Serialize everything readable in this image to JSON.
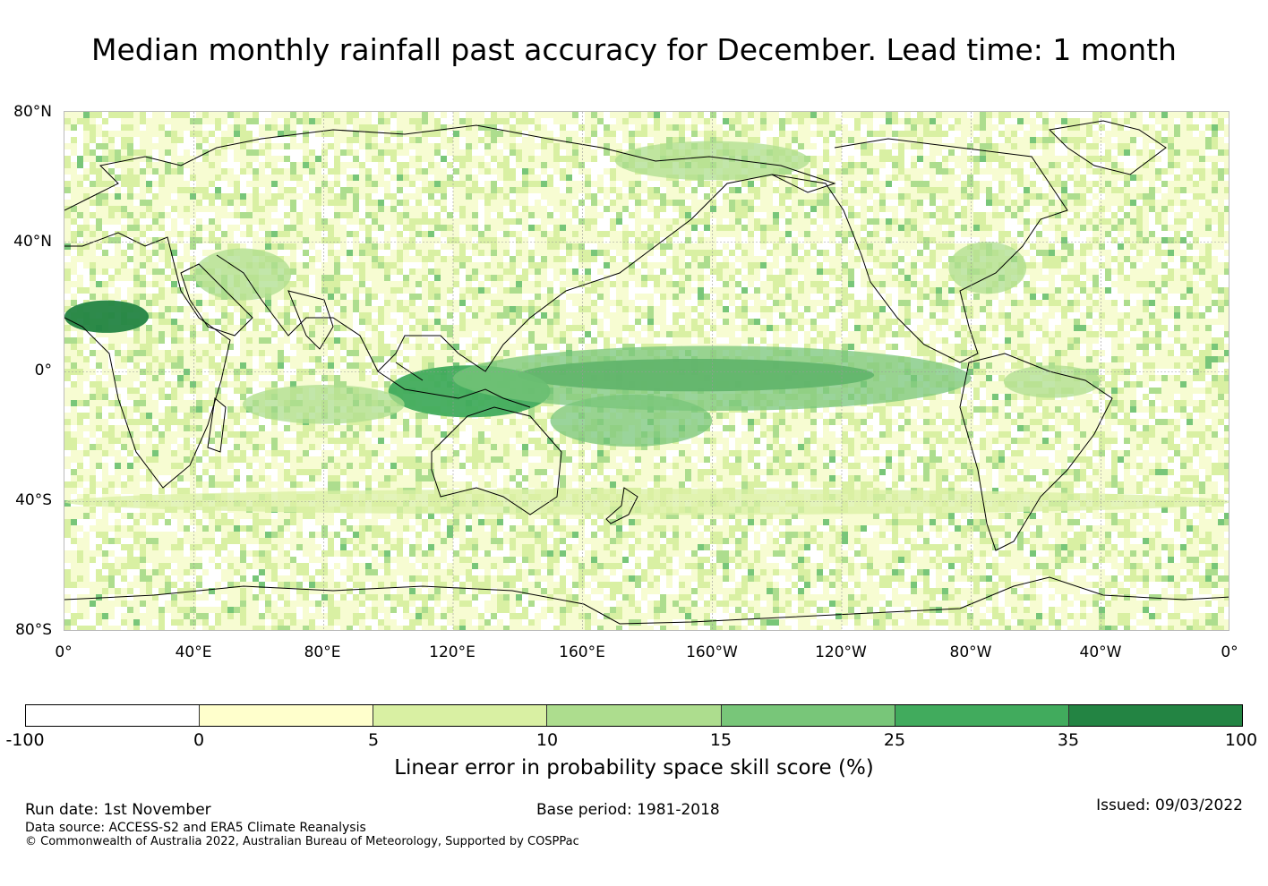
{
  "title": "Median monthly rainfall past accuracy for December. Lead time: 1 month",
  "map": {
    "lat_labels": [
      "80°N",
      "40°N",
      "0°",
      "40°S",
      "80°S"
    ],
    "lon_labels": [
      "0°",
      "40°E",
      "80°E",
      "120°E",
      "160°E",
      "160°W",
      "120°W",
      "80°W",
      "40°W",
      "0°"
    ],
    "extent": {
      "lon_min": 0,
      "lon_max": 360,
      "lat_min": -80,
      "lat_max": 80
    },
    "skill_regions": [
      {
        "name": "Central Pacific equatorial band",
        "lon_center": 195,
        "lat_center": -1,
        "lon_halfwidth": 55,
        "lat_halfwidth": 5,
        "class": 6
      },
      {
        "name": "Sahara",
        "lon_center": 13,
        "lat_center": 17,
        "lon_halfwidth": 13,
        "lat_halfwidth": 5,
        "class": 6
      },
      {
        "name": "Maritime Continent",
        "lon_center": 125,
        "lat_center": -6,
        "lon_halfwidth": 25,
        "lat_halfwidth": 8,
        "class": 5
      },
      {
        "name": "Equatorial Pacific wide",
        "lon_center": 200,
        "lat_center": -2,
        "lon_halfwidth": 80,
        "lat_halfwidth": 10,
        "class": 4
      },
      {
        "name": "South Pacific Convergence Zone",
        "lon_center": 175,
        "lat_center": -15,
        "lon_halfwidth": 25,
        "lat_halfwidth": 8,
        "class": 4
      },
      {
        "name": "Indian Ocean",
        "lon_center": 80,
        "lat_center": -10,
        "lon_halfwidth": 25,
        "lat_halfwidth": 6,
        "class": 3
      },
      {
        "name": "Middle East",
        "lon_center": 55,
        "lat_center": 30,
        "lon_halfwidth": 15,
        "lat_halfwidth": 8,
        "class": 3
      },
      {
        "name": "North Pacific",
        "lon_center": 200,
        "lat_center": 65,
        "lon_halfwidth": 30,
        "lat_halfwidth": 6,
        "class": 3
      },
      {
        "name": "Southern Ocean band",
        "lon_center": 180,
        "lat_center": -40,
        "lon_halfwidth": 180,
        "lat_halfwidth": 4,
        "class": 2
      },
      {
        "name": "Amazon",
        "lon_center": 305,
        "lat_center": -3,
        "lon_halfwidth": 15,
        "lat_halfwidth": 5,
        "class": 3
      },
      {
        "name": "US East Coast",
        "lon_center": 285,
        "lat_center": 32,
        "lon_halfwidth": 12,
        "lat_halfwidth": 8,
        "class": 3
      }
    ]
  },
  "colorbar": {
    "colors": [
      "#ffffff",
      "#ffffcc",
      "#d9f0a3",
      "#addd8e",
      "#78c679",
      "#41ab5d",
      "#238443"
    ],
    "ticks": [
      "-100",
      "0",
      "5",
      "10",
      "15",
      "25",
      "35",
      "100"
    ],
    "label": "Linear error in probability space skill score (%)"
  },
  "footer": {
    "run_date": "Run date: 1st November",
    "base_period": "Base period: 1981-2018",
    "issued": "Issued: 09/03/2022",
    "data_source": "Data source: ACCESS-S2 and ERA5 Climate Reanalysis",
    "copyright": "© Commonwealth of Australia 2022, Australian Bureau of Meteorology, Supported by COSPPac"
  }
}
